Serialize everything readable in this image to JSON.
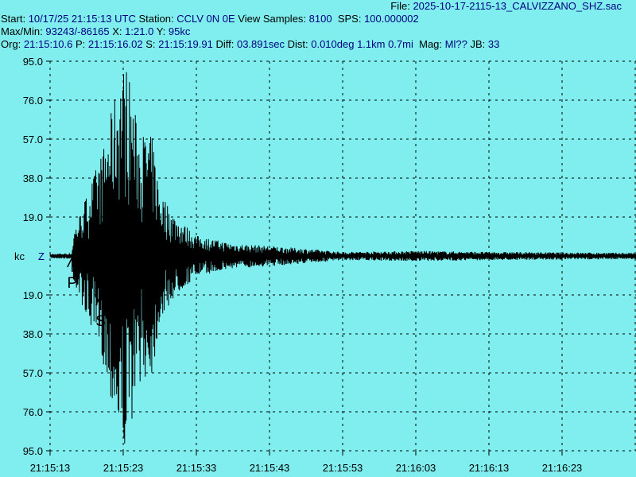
{
  "header": {
    "file_label": "File:",
    "file": "2025-10-17-2115-13_CALVIZZANO_SHZ.sac",
    "start_label": "Start:",
    "start": "10/17/25 21:15:13 UTC",
    "station_label": "Station:",
    "station": "CCLV 0N 0E",
    "samples_label": "View Samples:",
    "samples": "8100",
    "sps_label": "SPS:",
    "sps": "100.000002",
    "maxmin_label": "Max/Min:",
    "maxmin": "93243/-86165",
    "x_label": "X:",
    "x": "1:21.0",
    "y_label": "Y:",
    "y": "95kc",
    "org_label": "Org:",
    "org": "21:15:10.6",
    "p_label": "P:",
    "p": "21:15:16.02",
    "s_label": "S:",
    "s": "21:15:19.91",
    "diff_label": "Diff:",
    "diff": "03.891sec",
    "dist_label": "Dist:",
    "dist": "0.010deg 1.1km 0.7mi",
    "mag_label": "Mag:",
    "mag": "Ml??",
    "jb_label": "JB:",
    "jb": "33"
  },
  "chart_data": {
    "type": "line",
    "title": "",
    "ylabel": "kc",
    "channel": "Z",
    "ylim": [
      -95,
      95
    ],
    "y_tick_labels": [
      "95.0",
      "76.0",
      "57.0",
      "38.0",
      "19.0",
      "19.0",
      "38.0",
      "57.0",
      "76.0",
      "95.0"
    ],
    "x_tick_labels": [
      "21:15:13",
      "21:15:23",
      "21:15:33",
      "21:15:43",
      "21:15:53",
      "21:16:03",
      "21:16:13",
      "21:16:23"
    ],
    "xlim_seconds_after_start": [
      0,
      81
    ],
    "grid": true,
    "markers": [
      {
        "label": "P",
        "time": "21:15:16.02"
      },
      {
        "label": "S",
        "time": "21:15:19.91"
      }
    ],
    "amplitude_envelope_kc": [
      [
        0,
        1
      ],
      [
        3,
        1.5
      ],
      [
        3.2,
        12
      ],
      [
        5,
        30
      ],
      [
        7.5,
        55
      ],
      [
        9.5,
        90
      ],
      [
        10.5,
        95
      ],
      [
        12,
        62
      ],
      [
        14,
        58
      ],
      [
        15,
        32
      ],
      [
        17,
        20
      ],
      [
        20,
        10
      ],
      [
        25,
        6
      ],
      [
        30,
        5
      ],
      [
        40,
        2
      ],
      [
        50,
        2.5
      ],
      [
        60,
        2
      ],
      [
        81,
        1.5
      ]
    ],
    "colors": {
      "background": "#80eeee",
      "trace": "#000000",
      "grid": "#000000",
      "value_text": "#000080"
    }
  }
}
